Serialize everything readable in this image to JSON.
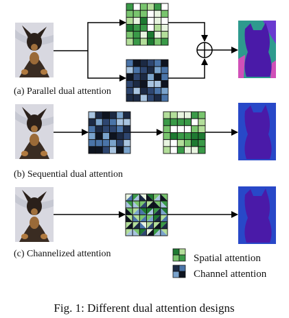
{
  "panels": [
    {
      "caption": "(a) Parallel dual attention",
      "kind": "parallel"
    },
    {
      "caption": "(b) Sequential dual attention",
      "kind": "sequential"
    },
    {
      "caption": "(c) Channelized attention",
      "kind": "channelized"
    }
  ],
  "legend": [
    {
      "label": "Spatial attention",
      "icon": "spatial-attention-swatch"
    },
    {
      "label": "Channel attention",
      "icon": "channel-attention-swatch"
    }
  ],
  "figure_caption": "Fig. 1: Different dual attention designs",
  "colors": {
    "spatial": [
      "#1e7a32",
      "#3a9a48",
      "#79c56e",
      "#b3de9a",
      "#e8f4e0",
      "#ffffff"
    ],
    "channel": [
      "#0e1420",
      "#1c2a44",
      "#2e4670",
      "#4a74a8",
      "#7aa3cc",
      "#a8c4e0"
    ],
    "mask_background_a": "#2e9a8e",
    "mask_background": "#2848c8",
    "mask_dog": "#4a1aa8"
  }
}
